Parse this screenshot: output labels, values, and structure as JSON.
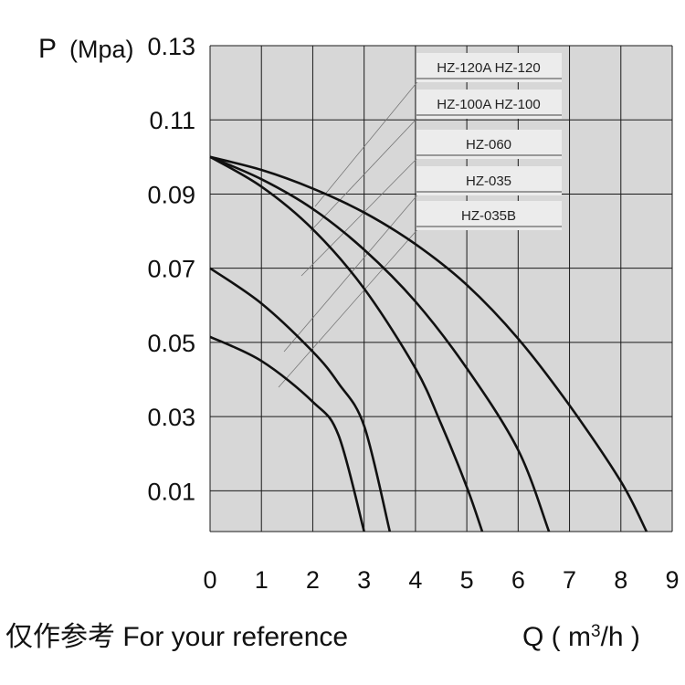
{
  "chart_data": {
    "type": "line",
    "ylabel_symbol": "P",
    "ylabel_unit": "(Mpa)",
    "xlabel_prefix": "Q ( m",
    "xlabel_sup": "3",
    "xlabel_suffix": "/h )",
    "footnote": "仅作参考  For your reference",
    "xlim": [
      0,
      9
    ],
    "ylim": [
      -0.001,
      0.13
    ],
    "x_ticks": [
      "0",
      "1",
      "2",
      "3",
      "4",
      "5",
      "6",
      "7",
      "8",
      "9"
    ],
    "y_ticks": [
      "0.13",
      "0.11",
      "0.09",
      "0.07",
      "0.05",
      "0.03",
      "0.01"
    ],
    "y_tick_values": [
      0.13,
      0.11,
      0.09,
      0.07,
      0.05,
      0.03,
      0.01
    ],
    "series": [
      {
        "name": "HZ-120A  HZ-120",
        "values": [
          [
            0,
            0.1
          ],
          [
            1,
            0.0965
          ],
          [
            2,
            0.0915
          ],
          [
            3,
            0.085
          ],
          [
            4,
            0.0765
          ],
          [
            5,
            0.0655
          ],
          [
            6,
            0.051
          ],
          [
            7,
            0.033
          ],
          [
            8,
            0.0125
          ],
          [
            8.5,
            -0.001
          ]
        ]
      },
      {
        "name": "HZ-100A  HZ-100",
        "values": [
          [
            0,
            0.1
          ],
          [
            1,
            0.094
          ],
          [
            2,
            0.086
          ],
          [
            3,
            0.075
          ],
          [
            4,
            0.061
          ],
          [
            5,
            0.043
          ],
          [
            6,
            0.021
          ],
          [
            6.6,
            -0.001
          ]
        ]
      },
      {
        "name": "HZ-060",
        "values": [
          [
            0,
            0.1
          ],
          [
            1,
            0.092
          ],
          [
            2,
            0.0805
          ],
          [
            3,
            0.0645
          ],
          [
            4,
            0.043
          ],
          [
            4.5,
            0.028
          ],
          [
            5,
            0.011
          ],
          [
            5.3,
            -0.001
          ]
        ]
      },
      {
        "name": "HZ-035",
        "values": [
          [
            0,
            0.07
          ],
          [
            1,
            0.0605
          ],
          [
            2,
            0.0475
          ],
          [
            2.5,
            0.039
          ],
          [
            3,
            0.0275
          ],
          [
            3.5,
            -0.001
          ]
        ]
      },
      {
        "name": "HZ-035B",
        "values": [
          [
            0,
            0.0515
          ],
          [
            1,
            0.045
          ],
          [
            2,
            0.034
          ],
          [
            2.5,
            0.025
          ],
          [
            3,
            -0.001
          ]
        ]
      }
    ],
    "grid": true,
    "legend_position": "top-right"
  }
}
